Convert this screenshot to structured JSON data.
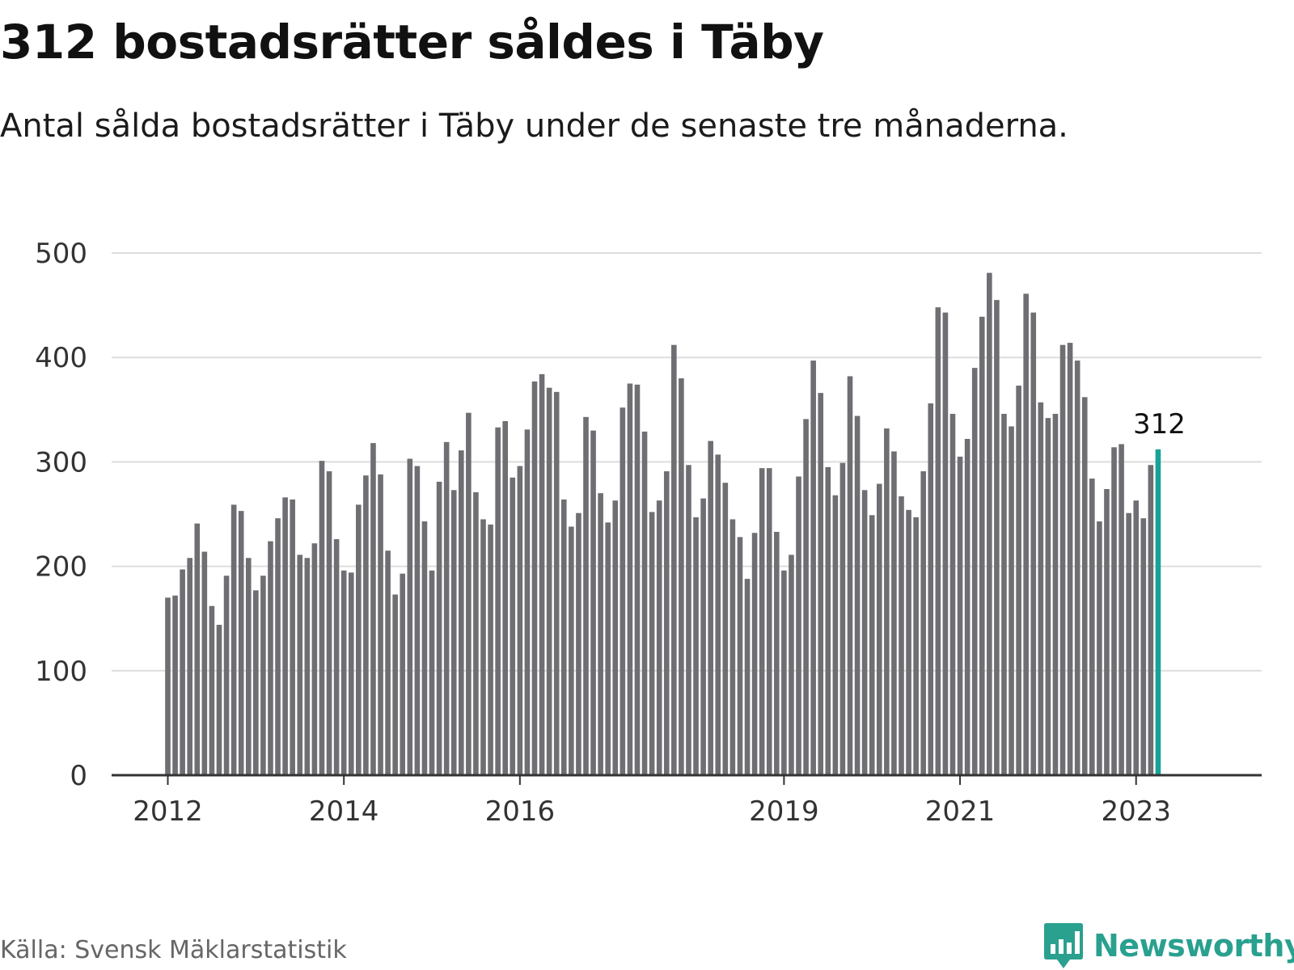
{
  "title": "312 bostadsrätter såldes i Täby",
  "subtitle": "Antal sålda bostadsrätter i Täby under de senaste tre månaderna.",
  "source": "Källa: Svensk Mäklarstatistik",
  "brand": {
    "name": "Newsworthy",
    "icon": "newsworthy-bar-chart-logo-icon"
  },
  "colors": {
    "bar": "#6e6e73",
    "highlight": "#17a398",
    "grid": "#dddddd",
    "axis": "#333333",
    "text": "#333333",
    "brand": "#2aa08f"
  },
  "chart_data": {
    "type": "bar",
    "title": "312 bostadsrätter såldes i Täby",
    "xlabel": "",
    "ylabel": "",
    "ylim": [
      0,
      500
    ],
    "yticks": [
      0,
      100,
      200,
      300,
      400,
      500
    ],
    "grid": true,
    "xtick_labels": [
      {
        "label": "2012",
        "index": 0
      },
      {
        "label": "2014",
        "index": 24
      },
      {
        "label": "2016",
        "index": 48
      },
      {
        "label": "2019",
        "index": 84
      },
      {
        "label": "2021",
        "index": 108
      },
      {
        "label": "2023",
        "index": 132
      }
    ],
    "highlight": {
      "index": 135,
      "label": "312"
    },
    "values": [
      170,
      172,
      197,
      208,
      241,
      214,
      162,
      144,
      191,
      259,
      253,
      208,
      177,
      191,
      224,
      246,
      266,
      264,
      211,
      208,
      222,
      301,
      291,
      226,
      196,
      194,
      259,
      287,
      318,
      288,
      215,
      173,
      193,
      303,
      296,
      243,
      196,
      281,
      319,
      273,
      311,
      347,
      271,
      245,
      240,
      333,
      339,
      285,
      296,
      331,
      377,
      384,
      371,
      367,
      264,
      238,
      251,
      343,
      330,
      270,
      242,
      263,
      352,
      375,
      374,
      329,
      252,
      263,
      291,
      412,
      380,
      297,
      247,
      265,
      320,
      307,
      280,
      245,
      228,
      188,
      232,
      294,
      294,
      233,
      196,
      211,
      286,
      341,
      397,
      366,
      295,
      268,
      299,
      382,
      344,
      273,
      249,
      279,
      332,
      310,
      267,
      254,
      247,
      291,
      356,
      448,
      443,
      346,
      305,
      322,
      390,
      439,
      481,
      455,
      346,
      334,
      373,
      461,
      443,
      357,
      342,
      346,
      412,
      414,
      397,
      362,
      284,
      243,
      274,
      314,
      317,
      251,
      263,
      246,
      297,
      312
    ]
  }
}
